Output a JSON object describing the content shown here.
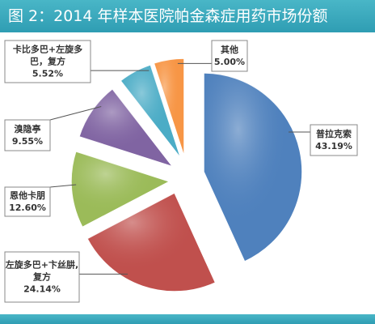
{
  "title": "图 2：2014 年样本医院帕金森症用药市场份额",
  "chart_data": {
    "type": "pie",
    "title": "图 2：2014 年样本医院帕金森症用药市场份额",
    "slices": [
      {
        "label_lines": [
          "普拉克索"
        ],
        "value_label": "43.19%",
        "value": 43.19,
        "color": "#4f81bd"
      },
      {
        "label_lines": [
          "左旋多巴+卞丝肼,",
          "复方"
        ],
        "value_label": "24.14%",
        "value": 24.14,
        "color": "#c0504d"
      },
      {
        "label_lines": [
          "恩他卡朋"
        ],
        "value_label": "12.60%",
        "value": 12.6,
        "color": "#9bbb59"
      },
      {
        "label_lines": [
          "溴隐亭"
        ],
        "value_label": "9.55%",
        "value": 9.55,
        "color": "#8064a2"
      },
      {
        "label_lines": [
          "卡比多巴+左旋多",
          "巴，复方"
        ],
        "value_label": "5.52%",
        "value": 5.52,
        "color": "#4bacc6"
      },
      {
        "label_lines": [
          "其他"
        ],
        "value_label": "5.00%",
        "value": 5.0,
        "color": "#f79646"
      }
    ],
    "legend": "none",
    "label_style": "callout boxes with leader lines"
  }
}
